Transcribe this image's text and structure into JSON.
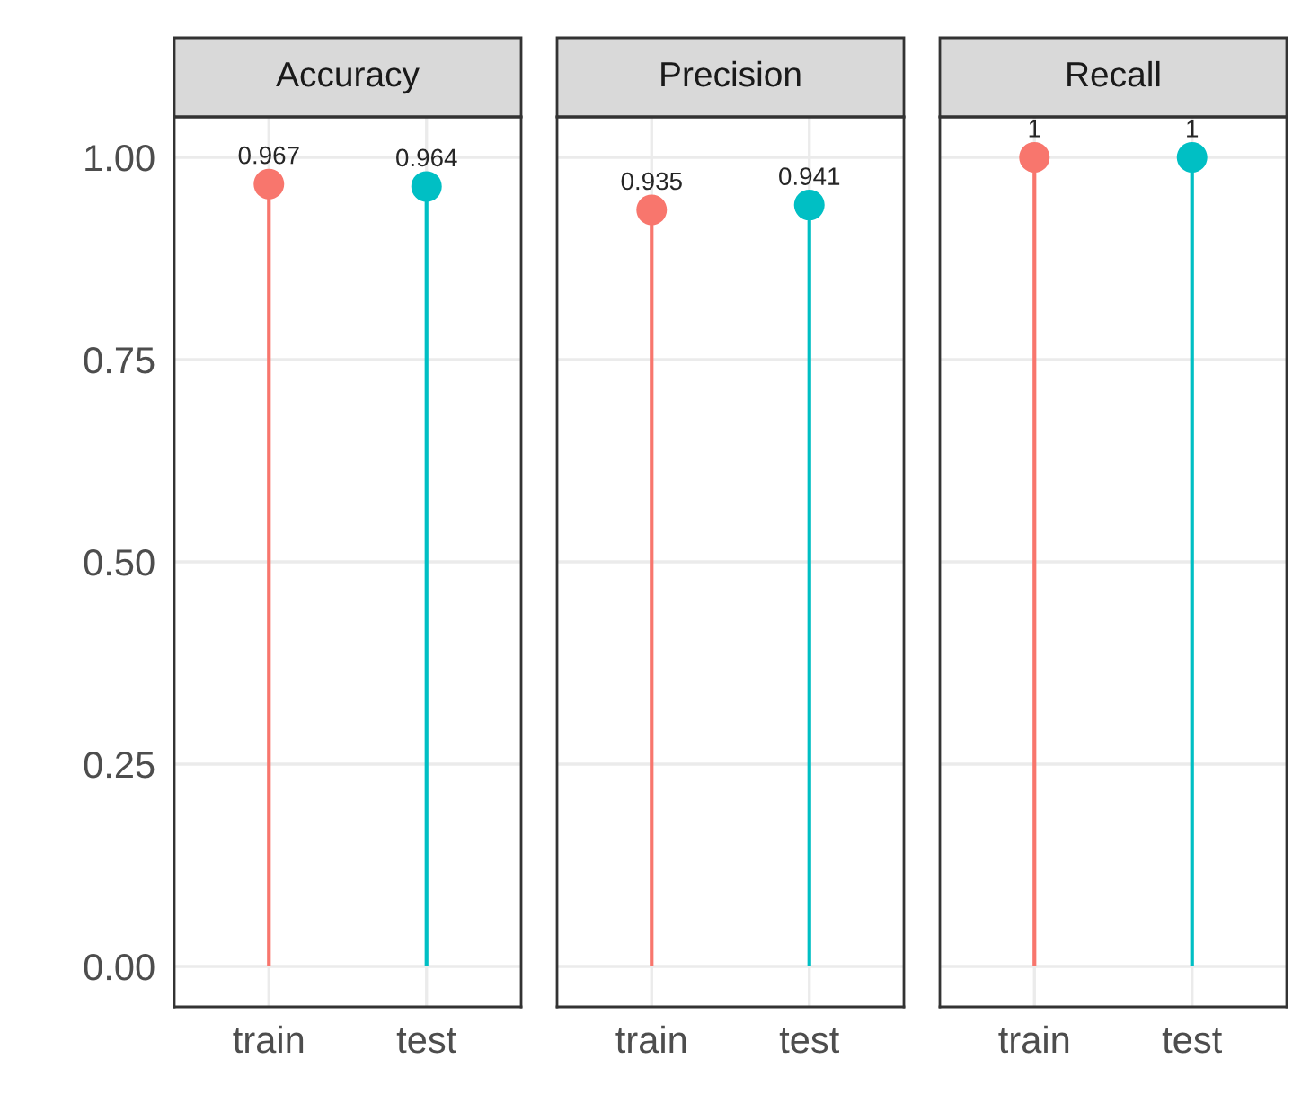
{
  "chart_data": [
    {
      "type": "lollipop",
      "title": "Accuracy",
      "categories": [
        "train",
        "test"
      ],
      "values": [
        0.967,
        0.964
      ],
      "colors": [
        "#f8766d",
        "#00bfc4"
      ],
      "ylim": [
        -0.05,
        1.05
      ],
      "yticks": [
        {
          "value": 0,
          "label": "0.00"
        },
        {
          "value": 0.25,
          "label": "0.25"
        },
        {
          "value": 0.5,
          "label": "0.50"
        },
        {
          "value": 0.75,
          "label": "0.75"
        },
        {
          "value": 1,
          "label": "1.00"
        }
      ],
      "data_labels": true,
      "grid": true
    },
    {
      "type": "lollipop",
      "title": "Precision",
      "categories": [
        "train",
        "test"
      ],
      "values": [
        0.935,
        0.941
      ],
      "colors": [
        "#f8766d",
        "#00bfc4"
      ],
      "ylim": [
        -0.05,
        1.05
      ],
      "yticks": [
        0,
        0.25,
        0.5,
        0.75,
        1
      ],
      "data_labels": true,
      "grid": true,
      "tick_labels": "x"
    },
    {
      "type": "lollipop",
      "title": "Recall",
      "categories": [
        "train",
        "test"
      ],
      "values": [
        1,
        1
      ],
      "colors": [
        "#f8766d",
        "#00bfc4"
      ],
      "ylim": [
        -0.05,
        1.05
      ],
      "yticks": [
        0,
        0.25,
        0.5,
        0.75,
        1
      ],
      "data_labels": true,
      "grid": true,
      "tick_labels": "x"
    }
  ]
}
